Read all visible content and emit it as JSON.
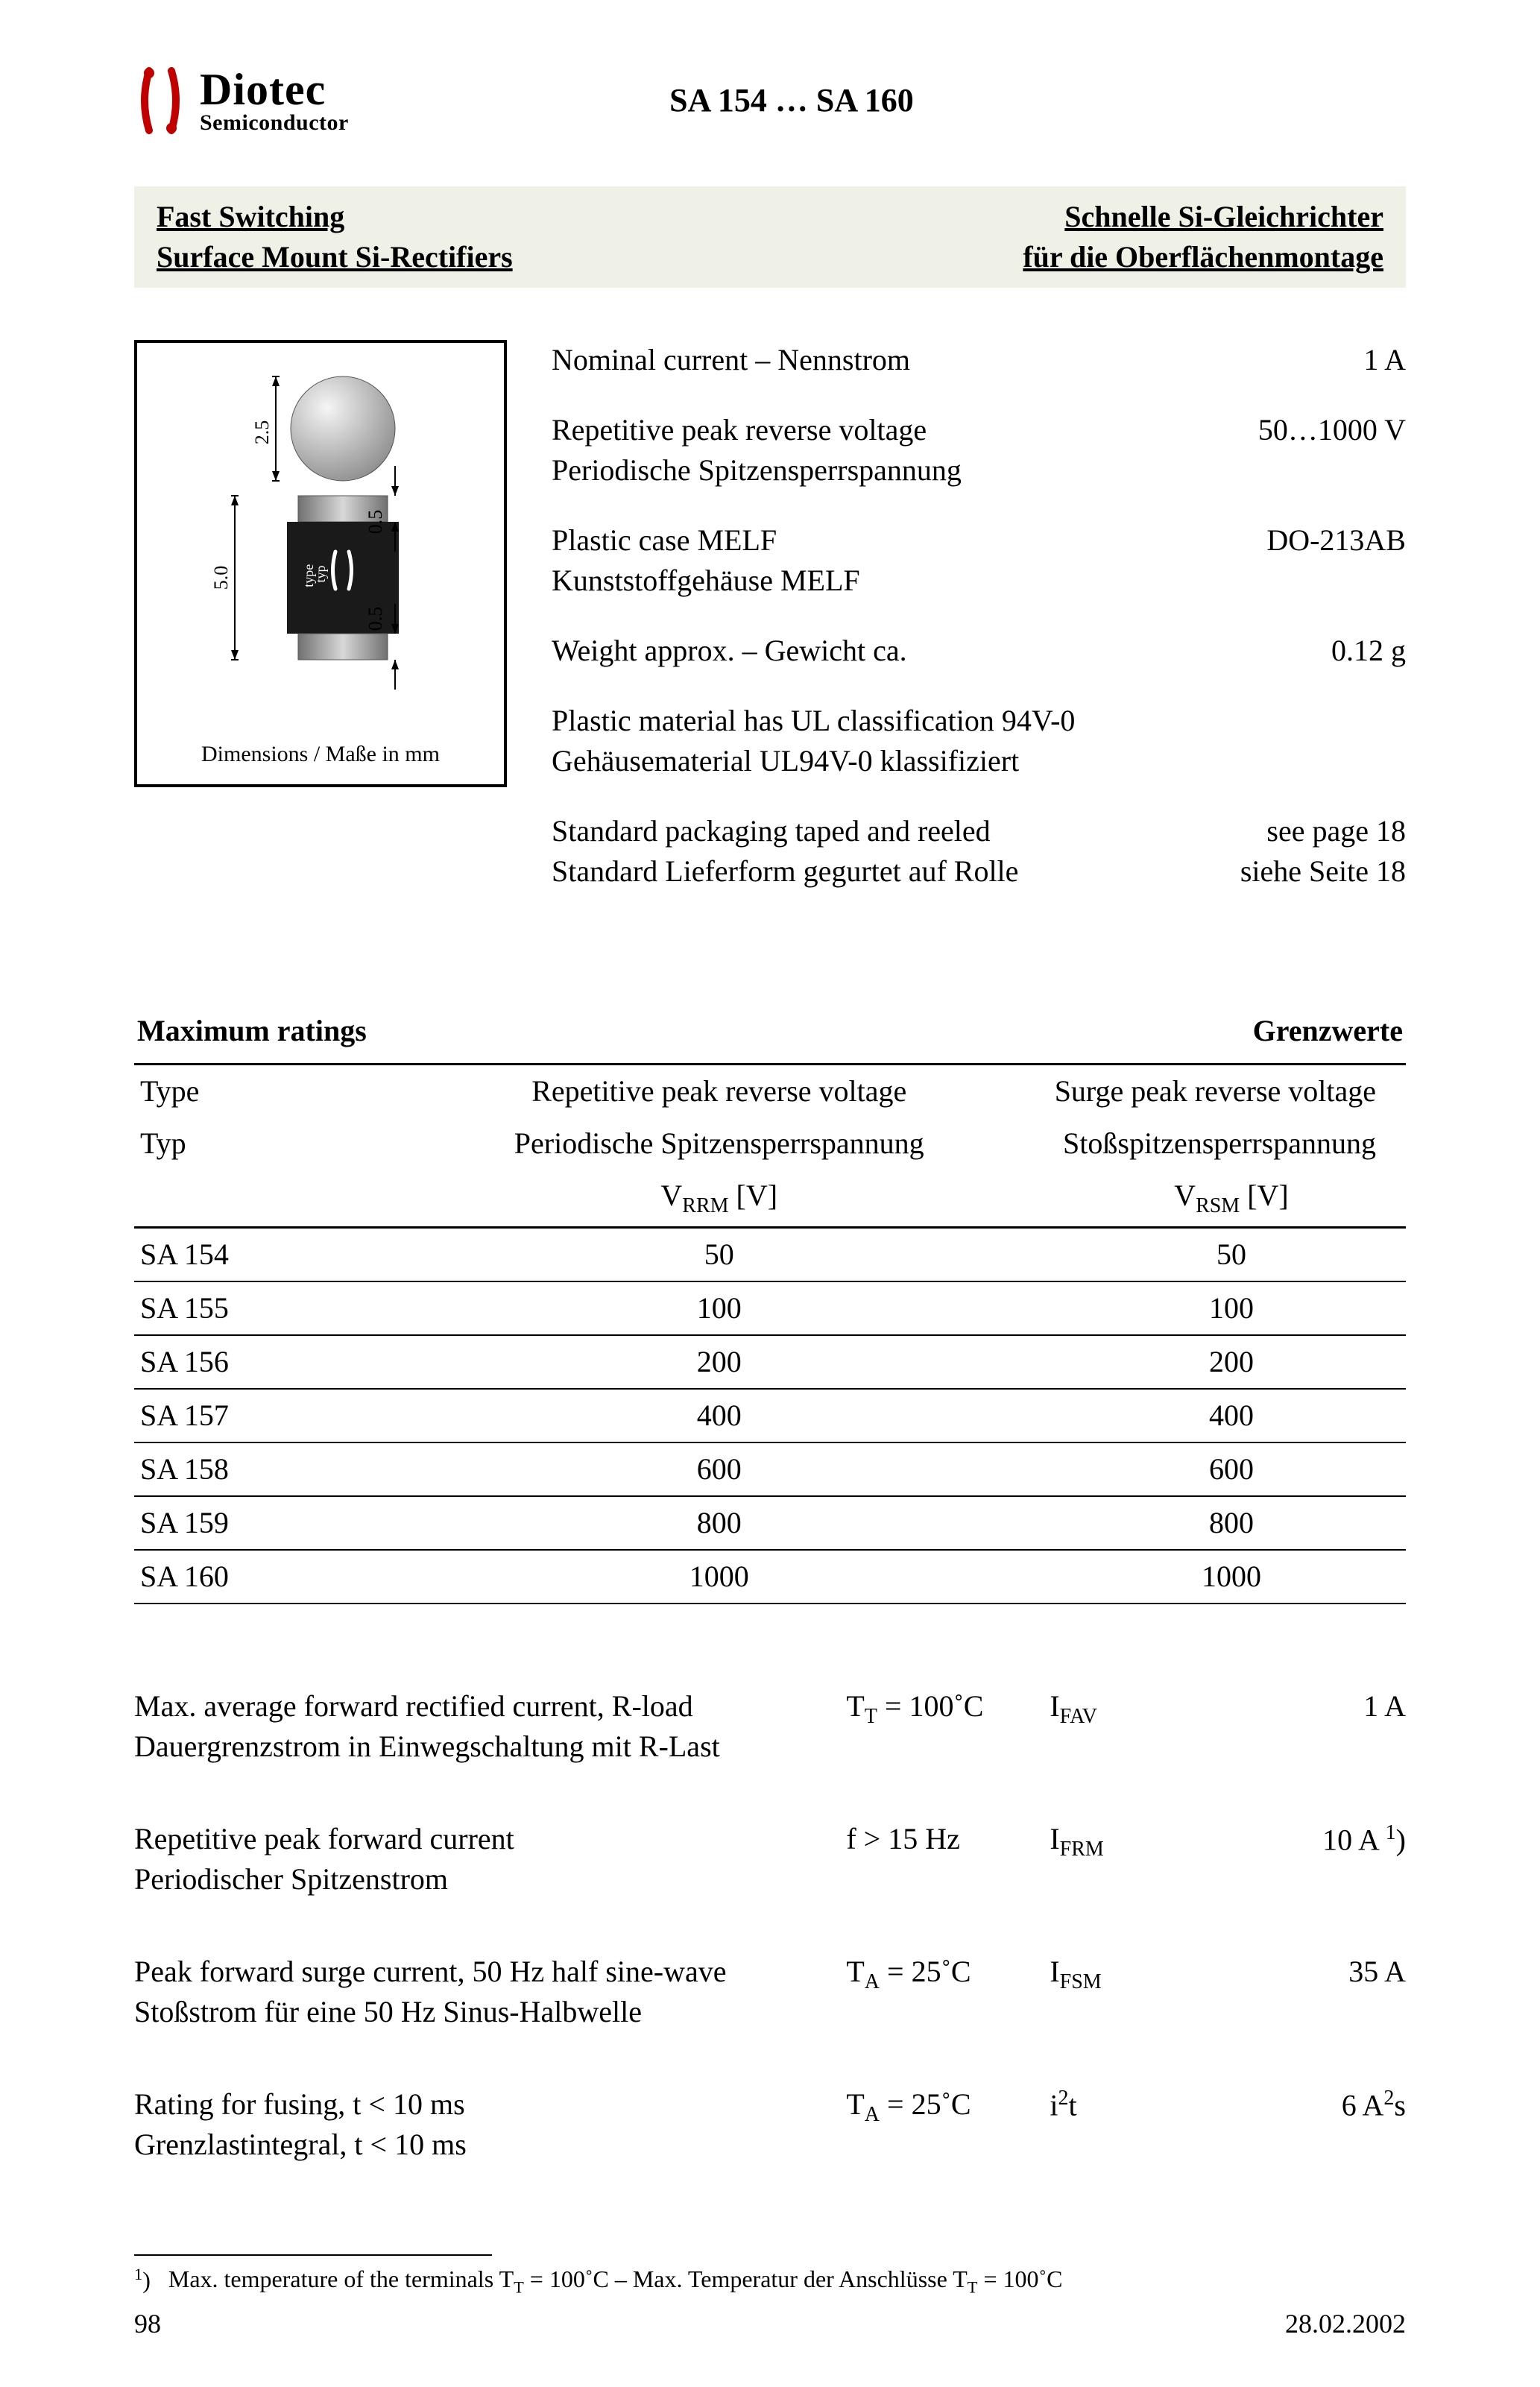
{
  "brand": {
    "name": "Diotec",
    "subtitle": "Semiconductor",
    "logo_color": "#c00000"
  },
  "doc_title": "SA 154 … SA 160",
  "titlebar": {
    "left1": "Fast Switching",
    "left2": "Surface Mount Si-Rectifiers",
    "right1": "Schnelle Si-Gleichrichter",
    "right2": "für die Oberflächenmontage",
    "bg_color": "#eff1e7"
  },
  "diagram": {
    "caption": "Dimensions / Maße in mm",
    "dims": {
      "height": "5.0",
      "ball_dia": "2.5",
      "cap_top": "0.5",
      "cap_bot": "0.5"
    },
    "component_label": "type\ntyp",
    "colors": {
      "ball": "#b8b8b8",
      "body": "#1a1a1a",
      "cap": "#a0a0a0",
      "line": "#000000",
      "badge": "#ffffff"
    }
  },
  "specs": [
    {
      "en": "Nominal current – Nennstrom",
      "de": "",
      "value": "1 A"
    },
    {
      "en": "Repetitive peak reverse voltage",
      "de": "Periodische Spitzensperrspannung",
      "value": "50…1000 V"
    },
    {
      "en": "Plastic case MELF",
      "de": "Kunststoffgehäuse MELF",
      "value": "DO-213AB"
    },
    {
      "en": "Weight approx. – Gewicht ca.",
      "de": "",
      "value": "0.12 g"
    },
    {
      "en": "Plastic material has UL classification 94V-0",
      "de": "Gehäusematerial UL94V-0 klassifiziert",
      "value": ""
    },
    {
      "en": "Standard packaging taped and reeled",
      "de": "Standard Lieferform gegurtet auf Rolle",
      "value": "see page 18",
      "value_de": "siehe Seite 18"
    }
  ],
  "ratings_titles": {
    "left": "Maximum ratings",
    "right": "Grenzwerte"
  },
  "ratings_headers": {
    "col1_en": "Type",
    "col1_de": "Typ",
    "col2_en": "Repetitive peak reverse voltage",
    "col2_de": "Periodische Spitzensperrspannung",
    "col2_sym": "V",
    "col2_sub": "RRM",
    "col2_unit": " [V]",
    "col3_en": "Surge peak reverse voltage",
    "col3_de": "Stoßspitzensperrspannung",
    "col3_sym": "V",
    "col3_sub": "RSM",
    "col3_unit": " [V]"
  },
  "ratings_rows": [
    {
      "type": "SA 154",
      "vrrm": "50",
      "vrsm": "50"
    },
    {
      "type": "SA 155",
      "vrrm": "100",
      "vrsm": "100"
    },
    {
      "type": "SA 156",
      "vrrm": "200",
      "vrsm": "200"
    },
    {
      "type": "SA 157",
      "vrrm": "400",
      "vrsm": "400"
    },
    {
      "type": "SA 158",
      "vrrm": "600",
      "vrsm": "600"
    },
    {
      "type": "SA 159",
      "vrrm": "800",
      "vrsm": "800"
    },
    {
      "type": "SA 160",
      "vrrm": "1000",
      "vrsm": "1000"
    }
  ],
  "params": [
    {
      "en": "Max. average forward rectified current, R-load",
      "de": "Dauergrenzstrom in Einwegschaltung mit R-Last",
      "cond_html": "T<span class='subs'>T</span> = 100˚C",
      "sym_html": "I<span class='subs'>FAV</span>",
      "val_html": "1 A"
    },
    {
      "en": "Repetitive peak forward current",
      "de": "Periodischer Spitzenstrom",
      "cond_html": "f > 15 Hz",
      "sym_html": "I<span class='subs'>FRM</span>",
      "val_html": "10 A <span class='sup'>1</span>)"
    },
    {
      "en": "Peak forward surge current, 50 Hz half sine-wave",
      "de": "Stoßstrom für eine 50 Hz Sinus-Halbwelle",
      "cond_html": "T<span class='subs'>A</span> = 25˚C",
      "sym_html": "I<span class='subs'>FSM</span>",
      "val_html": "35 A"
    },
    {
      "en": "Rating for fusing, t < 10 ms",
      "de": "Grenzlastintegral, t < 10 ms",
      "cond_html": "T<span class='subs'>A</span> = 25˚C",
      "sym_html": "i<span class='sup'>2</span>t",
      "val_html": "6 A<span class='sup'>2</span>s"
    }
  ],
  "footnote": {
    "marker": "1)",
    "text_html": "Max. temperature of the terminals T<span class='subs'>T</span> = 100˚C – Max. Temperatur der Anschlüsse T<span class='subs'>T</span> = 100˚C"
  },
  "footer": {
    "page": "98",
    "date": "28.02.2002"
  }
}
